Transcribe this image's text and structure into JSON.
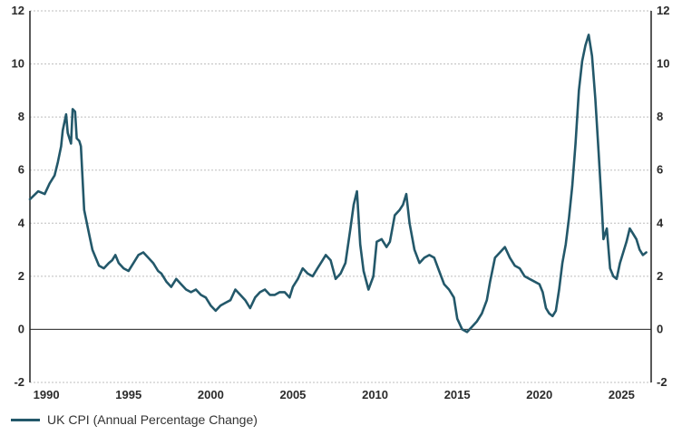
{
  "colors": {
    "line": "#23586a",
    "grid": "#bdbdbd",
    "axis": "#222222",
    "text": "#2b2b2b"
  },
  "chart_data": {
    "type": "line",
    "title": "",
    "xlabel": "",
    "ylabel": "",
    "xlim": [
      1989.0,
      2026.8
    ],
    "ylim": [
      -2,
      12
    ],
    "y_ticks": [
      -2,
      0,
      2,
      4,
      6,
      8,
      10,
      12
    ],
    "x_ticks": [
      1990,
      1995,
      2000,
      2005,
      2010,
      2015,
      2020,
      2025
    ],
    "y_tick_labels": [
      "-2",
      "0",
      "2",
      "4",
      "6",
      "8",
      "10",
      "12"
    ],
    "x_tick_labels": [
      "1990",
      "1995",
      "2000",
      "2005",
      "2010",
      "2015",
      "2020",
      "2025"
    ],
    "grid": "horizontal dotted",
    "axes": "left and right y-axes",
    "legend_position": "bottom-left",
    "series": [
      {
        "name": "UK CPI (Annual Percentage Change)",
        "x": [
          1989.0,
          1989.5,
          1989.9,
          1990.2,
          1990.5,
          1990.7,
          1990.9,
          1991.0,
          1991.2,
          1991.3,
          1991.5,
          1991.6,
          1991.75,
          1991.85,
          1992.0,
          1992.1,
          1992.3,
          1992.6,
          1992.8,
          1993.0,
          1993.2,
          1993.5,
          1993.8,
          1994.0,
          1994.2,
          1994.4,
          1994.7,
          1995.0,
          1995.3,
          1995.6,
          1995.9,
          1996.2,
          1996.5,
          1996.8,
          1997.0,
          1997.3,
          1997.6,
          1997.9,
          1998.2,
          1998.5,
          1998.8,
          1999.1,
          1999.4,
          1999.7,
          2000.0,
          2000.3,
          2000.6,
          2000.9,
          2001.2,
          2001.5,
          2001.8,
          2002.1,
          2002.4,
          2002.7,
          2003.0,
          2003.3,
          2003.6,
          2003.9,
          2004.2,
          2004.5,
          2004.8,
          2005.0,
          2005.3,
          2005.6,
          2005.9,
          2006.2,
          2006.5,
          2006.8,
          2007.0,
          2007.3,
          2007.6,
          2007.9,
          2008.2,
          2008.5,
          2008.7,
          2008.9,
          2009.1,
          2009.3,
          2009.6,
          2009.9,
          2010.1,
          2010.4,
          2010.7,
          2010.9,
          2011.2,
          2011.5,
          2011.7,
          2011.9,
          2012.1,
          2012.4,
          2012.7,
          2013.0,
          2013.3,
          2013.6,
          2013.9,
          2014.2,
          2014.5,
          2014.8,
          2015.0,
          2015.3,
          2015.6,
          2015.9,
          2016.2,
          2016.5,
          2016.8,
          2017.0,
          2017.3,
          2017.6,
          2017.9,
          2018.2,
          2018.5,
          2018.8,
          2019.1,
          2019.4,
          2019.7,
          2020.0,
          2020.2,
          2020.4,
          2020.6,
          2020.8,
          2021.0,
          2021.2,
          2021.4,
          2021.6,
          2021.8,
          2022.0,
          2022.2,
          2022.4,
          2022.6,
          2022.8,
          2023.0,
          2023.2,
          2023.4,
          2023.6,
          2023.8,
          2023.9,
          2024.1,
          2024.3,
          2024.5,
          2024.7,
          2024.9,
          2025.1,
          2025.3,
          2025.5,
          2025.7,
          2025.9,
          2026.1,
          2026.3,
          2026.5
        ],
        "y": [
          4.9,
          5.2,
          5.1,
          5.5,
          5.8,
          6.3,
          6.9,
          7.5,
          8.1,
          7.4,
          7.0,
          8.3,
          8.2,
          7.2,
          7.1,
          6.9,
          4.5,
          3.6,
          3.0,
          2.7,
          2.4,
          2.3,
          2.5,
          2.6,
          2.8,
          2.5,
          2.3,
          2.2,
          2.5,
          2.8,
          2.9,
          2.7,
          2.5,
          2.2,
          2.1,
          1.8,
          1.6,
          1.9,
          1.7,
          1.5,
          1.4,
          1.5,
          1.3,
          1.2,
          0.9,
          0.7,
          0.9,
          1.0,
          1.1,
          1.5,
          1.3,
          1.1,
          0.8,
          1.2,
          1.4,
          1.5,
          1.3,
          1.3,
          1.4,
          1.4,
          1.2,
          1.6,
          1.9,
          2.3,
          2.1,
          2.0,
          2.3,
          2.6,
          2.8,
          2.6,
          1.9,
          2.1,
          2.5,
          3.8,
          4.7,
          5.2,
          3.2,
          2.2,
          1.5,
          2.0,
          3.3,
          3.4,
          3.1,
          3.3,
          4.3,
          4.5,
          4.7,
          5.1,
          4.0,
          3.0,
          2.5,
          2.7,
          2.8,
          2.7,
          2.2,
          1.7,
          1.5,
          1.2,
          0.4,
          0.0,
          -0.1,
          0.1,
          0.3,
          0.6,
          1.1,
          1.8,
          2.7,
          2.9,
          3.1,
          2.7,
          2.4,
          2.3,
          2.0,
          1.9,
          1.8,
          1.7,
          1.4,
          0.8,
          0.6,
          0.5,
          0.7,
          1.5,
          2.5,
          3.2,
          4.2,
          5.4,
          7.0,
          9.0,
          10.1,
          10.7,
          11.1,
          10.3,
          8.7,
          6.7,
          4.6,
          3.4,
          3.8,
          2.3,
          2.0,
          1.9,
          2.5,
          2.9,
          3.3,
          3.8,
          3.6,
          3.4,
          3.0,
          2.8,
          2.9
        ]
      }
    ]
  }
}
